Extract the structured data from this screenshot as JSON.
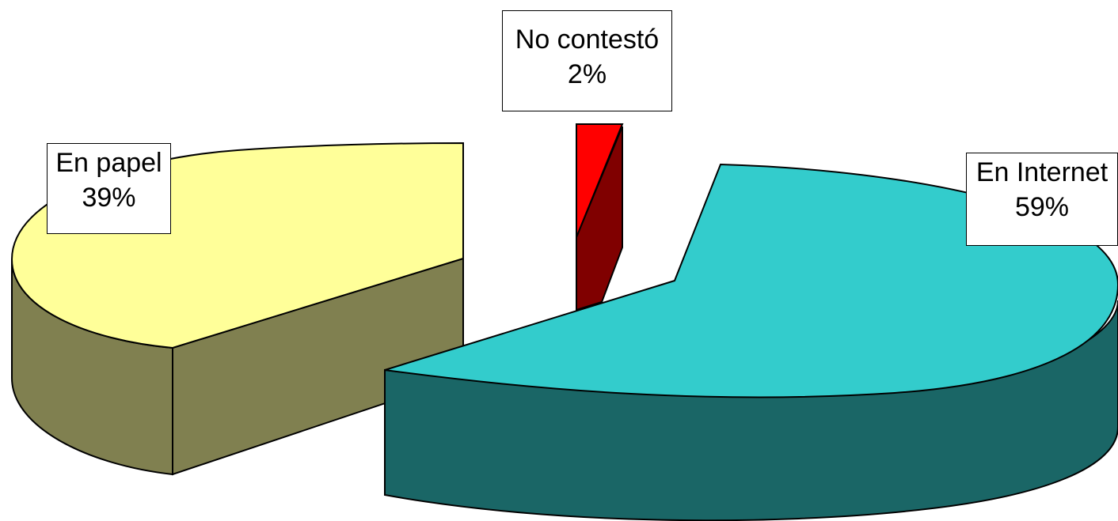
{
  "chart_data": {
    "type": "pie",
    "style": "3d-exploded",
    "title": "",
    "legend": "none",
    "slices": [
      {
        "label": "En papel",
        "value": 39,
        "value_label": "39%",
        "color": "#ffff99",
        "side_color": "#808050"
      },
      {
        "label": "No contestó",
        "value": 2,
        "value_label": "2%",
        "color": "#ff0000",
        "side_color": "#800000"
      },
      {
        "label": "En Internet",
        "value": 59,
        "value_label": "59%",
        "color": "#33cccc",
        "side_color": "#1a6666"
      }
    ]
  }
}
